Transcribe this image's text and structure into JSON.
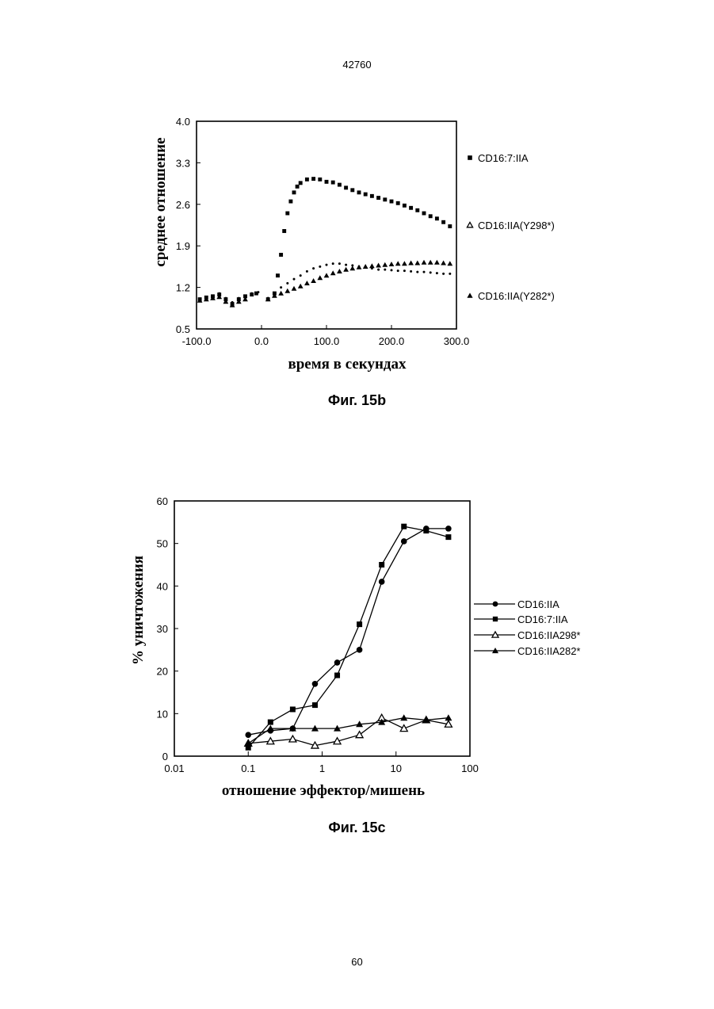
{
  "page": {
    "header_number": "42760",
    "footer_number": "60"
  },
  "chart_data": [
    {
      "type": "scatter",
      "caption": "Фиг. 15b",
      "xlabel": "время в секундах",
      "ylabel": "среднее отношение",
      "xlim": [
        -100,
        300
      ],
      "ylim": [
        0.5,
        4.0
      ],
      "x_ticks": [
        "-100.0",
        "0.0",
        "100.0",
        "200.0",
        "300.0"
      ],
      "y_ticks": [
        "0.5",
        "1.2",
        "1.9",
        "2.6",
        "3.3",
        "4.0"
      ],
      "legend_placement": "right",
      "series": [
        {
          "name": "CD16:7:IIA",
          "marker": "filled-square",
          "points": [
            [
              -95,
              1.0
            ],
            [
              -85,
              1.03
            ],
            [
              -75,
              1.05
            ],
            [
              -65,
              1.08
            ],
            [
              -55,
              1.0
            ],
            [
              -45,
              0.92
            ],
            [
              -35,
              1.0
            ],
            [
              -25,
              1.05
            ],
            [
              -15,
              1.08
            ],
            [
              -8,
              1.1
            ],
            [
              10,
              1.0
            ],
            [
              20,
              1.1
            ],
            [
              25,
              1.4
            ],
            [
              30,
              1.75
            ],
            [
              35,
              2.15
            ],
            [
              40,
              2.45
            ],
            [
              45,
              2.65
            ],
            [
              50,
              2.8
            ],
            [
              55,
              2.9
            ],
            [
              60,
              2.96
            ],
            [
              70,
              3.02
            ],
            [
              80,
              3.03
            ],
            [
              90,
              3.02
            ],
            [
              100,
              2.98
            ],
            [
              110,
              2.97
            ],
            [
              120,
              2.93
            ],
            [
              130,
              2.88
            ],
            [
              140,
              2.84
            ],
            [
              150,
              2.8
            ],
            [
              160,
              2.77
            ],
            [
              170,
              2.74
            ],
            [
              180,
              2.71
            ],
            [
              190,
              2.68
            ],
            [
              200,
              2.65
            ],
            [
              210,
              2.62
            ],
            [
              220,
              2.58
            ],
            [
              230,
              2.54
            ],
            [
              240,
              2.5
            ],
            [
              250,
              2.45
            ],
            [
              260,
              2.4
            ],
            [
              270,
              2.36
            ],
            [
              280,
              2.3
            ],
            [
              290,
              2.23
            ]
          ]
        },
        {
          "name": "CD16:IIA(Y298*)",
          "marker": "small-dot",
          "points": [
            [
              -95,
              0.98
            ],
            [
              -85,
              1.0
            ],
            [
              -75,
              1.02
            ],
            [
              -65,
              1.1
            ],
            [
              -55,
              1.02
            ],
            [
              -45,
              0.95
            ],
            [
              -35,
              1.02
            ],
            [
              -25,
              1.06
            ],
            [
              -15,
              1.1
            ],
            [
              -5,
              1.12
            ],
            [
              10,
              1.02
            ],
            [
              20,
              1.1
            ],
            [
              30,
              1.2
            ],
            [
              40,
              1.27
            ],
            [
              50,
              1.34
            ],
            [
              60,
              1.4
            ],
            [
              70,
              1.47
            ],
            [
              80,
              1.52
            ],
            [
              90,
              1.55
            ],
            [
              100,
              1.58
            ],
            [
              110,
              1.6
            ],
            [
              120,
              1.6
            ],
            [
              130,
              1.58
            ],
            [
              140,
              1.57
            ],
            [
              150,
              1.55
            ],
            [
              160,
              1.54
            ],
            [
              170,
              1.52
            ],
            [
              180,
              1.5
            ],
            [
              190,
              1.5
            ],
            [
              200,
              1.49
            ],
            [
              210,
              1.48
            ],
            [
              220,
              1.48
            ],
            [
              230,
              1.47
            ],
            [
              240,
              1.46
            ],
            [
              250,
              1.46
            ],
            [
              260,
              1.45
            ],
            [
              270,
              1.44
            ],
            [
              280,
              1.43
            ],
            [
              290,
              1.43
            ]
          ]
        },
        {
          "name": "CD16:IIA(Y282*)",
          "marker": "filled-triangle",
          "points": [
            [
              -95,
              0.98
            ],
            [
              -85,
              1.0
            ],
            [
              -75,
              1.02
            ],
            [
              -65,
              1.04
            ],
            [
              -55,
              0.96
            ],
            [
              -45,
              0.9
            ],
            [
              -35,
              0.96
            ],
            [
              -25,
              1.0
            ],
            [
              10,
              1.0
            ],
            [
              20,
              1.06
            ],
            [
              30,
              1.1
            ],
            [
              40,
              1.14
            ],
            [
              50,
              1.18
            ],
            [
              60,
              1.22
            ],
            [
              70,
              1.27
            ],
            [
              80,
              1.31
            ],
            [
              90,
              1.36
            ],
            [
              100,
              1.4
            ],
            [
              110,
              1.44
            ],
            [
              120,
              1.47
            ],
            [
              130,
              1.5
            ],
            [
              140,
              1.52
            ],
            [
              150,
              1.54
            ],
            [
              160,
              1.55
            ],
            [
              170,
              1.56
            ],
            [
              180,
              1.57
            ],
            [
              190,
              1.58
            ],
            [
              200,
              1.59
            ],
            [
              210,
              1.6
            ],
            [
              220,
              1.6
            ],
            [
              230,
              1.61
            ],
            [
              240,
              1.61
            ],
            [
              250,
              1.62
            ],
            [
              260,
              1.62
            ],
            [
              270,
              1.62
            ],
            [
              280,
              1.61
            ],
            [
              290,
              1.6
            ]
          ]
        }
      ]
    },
    {
      "type": "line",
      "caption": "Фиг. 15c",
      "xlabel": "отношение эффектор/мишень",
      "ylabel": "% уничтожения",
      "x_scale": "log",
      "xlim": [
        0.01,
        100
      ],
      "ylim": [
        0,
        60
      ],
      "x_ticks": [
        "0.01",
        "0.1",
        "1",
        "10",
        "100"
      ],
      "y_ticks": [
        "0",
        "10",
        "20",
        "30",
        "40",
        "50",
        "60"
      ],
      "legend_placement": "right",
      "series": [
        {
          "name": "CD16:IIA",
          "marker": "filled-circle",
          "x": [
            0.1,
            0.2,
            0.4,
            0.8,
            1.6,
            3.2,
            6.4,
            12.8,
            25.6,
            51.2
          ],
          "y": [
            5,
            6,
            6.5,
            17,
            22,
            25,
            41,
            50.5,
            53.5,
            53.5
          ]
        },
        {
          "name": "CD16:7:IIA",
          "marker": "filled-square",
          "x": [
            0.1,
            0.2,
            0.4,
            0.8,
            1.6,
            3.2,
            6.4,
            12.8,
            25.6,
            51.2
          ],
          "y": [
            2,
            8,
            11,
            12,
            19,
            31,
            45,
            54,
            53,
            51.5
          ]
        },
        {
          "name": "CD16:IIA298*",
          "marker": "open-triangle",
          "x": [
            0.1,
            0.2,
            0.4,
            0.8,
            1.6,
            3.2,
            6.4,
            12.8,
            25.6,
            51.2
          ],
          "y": [
            3,
            3.5,
            4,
            2.5,
            3.5,
            5,
            9,
            6.5,
            8.5,
            7.5
          ]
        },
        {
          "name": "CD16:IIA282*",
          "marker": "filled-triangle",
          "x": [
            0.1,
            0.2,
            0.4,
            0.8,
            1.6,
            3.2,
            6.4,
            12.8,
            25.6,
            51.2
          ],
          "y": [
            3,
            6.5,
            6.5,
            6.5,
            6.5,
            7.5,
            8,
            9,
            8.5,
            9
          ]
        }
      ]
    }
  ]
}
